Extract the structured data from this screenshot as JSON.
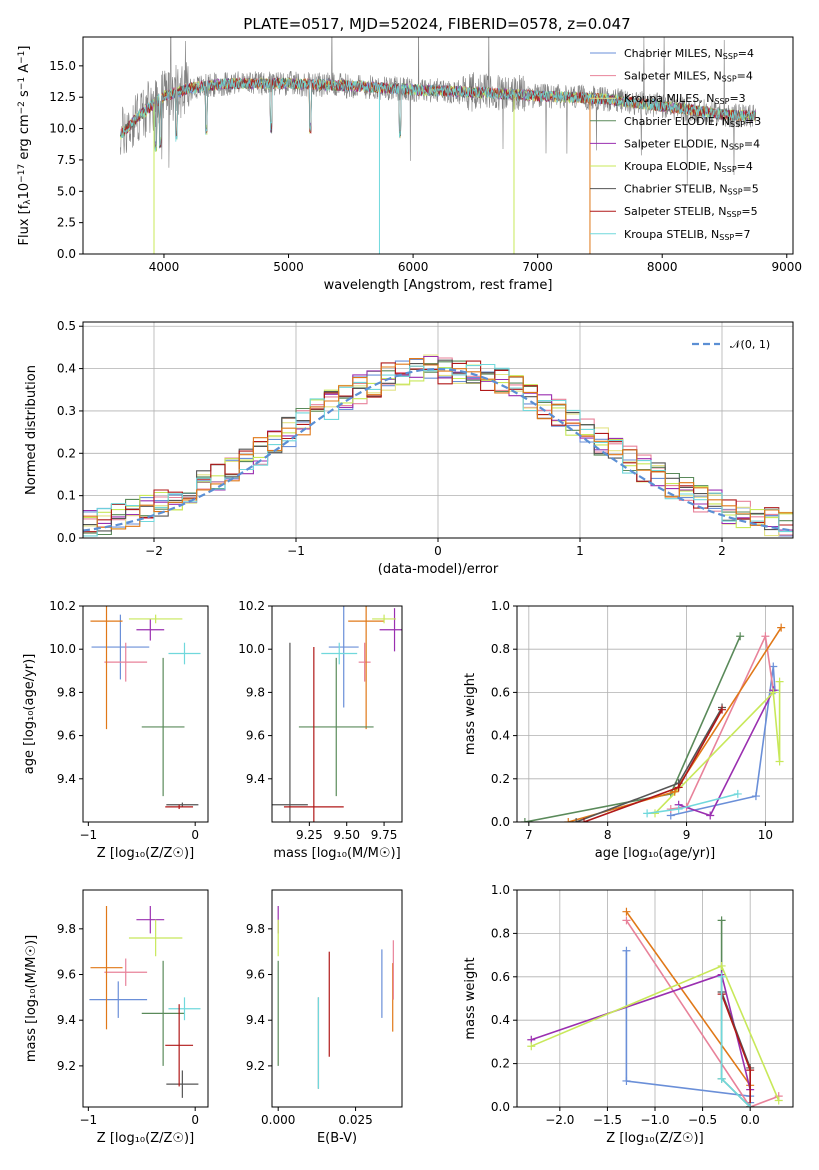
{
  "figure_title": "PLATE=0517, MJD=52024, FIBERID=0578, z=0.047",
  "colors": [
    "#6a8fd8",
    "#e8829a",
    "#e3e388",
    "#5a8a5a",
    "#9a2fb0",
    "#c8e85a",
    "#555555",
    "#b01818",
    "#70d8dc",
    "#e07818"
  ],
  "chart_data": [
    {
      "id": "spectrum",
      "type": "line",
      "title": "PLATE=0517, MJD=52024, FIBERID=0578, z=0.047",
      "xlabel": "wavelength [Angstrom, rest frame]",
      "ylabel_parts": [
        "Flux [f",
        "λ",
        "10",
        "−17",
        " erg cm",
        "−2",
        " s",
        "−1",
        " A",
        "−1",
        "]"
      ],
      "xlim": [
        3350,
        9050
      ],
      "ylim": [
        0,
        17.3
      ],
      "xticks": [
        "4000",
        "5000",
        "6000",
        "7000",
        "8000",
        "9000"
      ],
      "xtick_values": [
        4000,
        5000,
        6000,
        7000,
        8000,
        9000
      ],
      "yticks": [
        "0.0",
        "2.5",
        "5.0",
        "7.5",
        "10.0",
        "12.5",
        "15.0"
      ],
      "ytick_values": [
        0,
        2.5,
        5,
        7.5,
        10,
        12.5,
        15
      ],
      "legend_position": "upper-right",
      "series": [
        {
          "name": "Chabrier MILES",
          "nssp": "4",
          "color": "#6a8fd8"
        },
        {
          "name": "Salpeter MILES",
          "nssp": "4",
          "color": "#e8829a"
        },
        {
          "name": "Kroupa MILES",
          "nssp": "3",
          "color": "#e3e388"
        },
        {
          "name": "Chabrier ELODIE",
          "nssp": "3",
          "color": "#5a8a5a"
        },
        {
          "name": "Salpeter ELODIE",
          "nssp": "4",
          "color": "#9a2fb0"
        },
        {
          "name": "Kroupa ELODIE",
          "nssp": "4",
          "color": "#c8e85a"
        },
        {
          "name": "Chabrier STELIB",
          "nssp": "5",
          "color": "#555555"
        },
        {
          "name": "Salpeter STELIB",
          "nssp": "5",
          "color": "#b01818"
        },
        {
          "name": "Kroupa STELIB",
          "nssp": "7",
          "color": "#70d8dc"
        }
      ],
      "nssp_label": "N",
      "nssp_sub": "SSP",
      "continuum_x": [
        3650,
        3800,
        4000,
        4200,
        4500,
        5000,
        5500,
        6000,
        6500,
        7000,
        7500,
        8000,
        8500,
        8750
      ],
      "continuum_y": [
        9.5,
        11.0,
        12.6,
        13.2,
        13.6,
        13.6,
        13.4,
        13.1,
        12.9,
        12.6,
        12.4,
        11.8,
        11.1,
        11.0
      ]
    },
    {
      "id": "residuals",
      "type": "step",
      "xlabel": "(data-model)/error",
      "ylabel": "Normed distribution",
      "xlim": [
        -2.5,
        2.5
      ],
      "ylim": [
        0,
        0.51
      ],
      "xticks": [
        "−2",
        "−1",
        "0",
        "1",
        "2"
      ],
      "xtick_values": [
        -2,
        -1,
        0,
        1,
        2
      ],
      "yticks": [
        "0.0",
        "0.1",
        "0.2",
        "0.3",
        "0.4",
        "0.5"
      ],
      "ytick_values": [
        0,
        0.1,
        0.2,
        0.3,
        0.4,
        0.5
      ],
      "bin_width": 0.1,
      "legend": {
        "label": "𝒩(0, 1)",
        "position": "upper-right",
        "color": "#5b8fd4"
      },
      "grid": true
    },
    {
      "id": "age_vs_Z",
      "type": "errorbar",
      "xlabel": "Z [log₁₀(Z/Z☉)]",
      "ylabel": "age  [log₁₀(age/yr)]",
      "xlim": [
        -1.05,
        0.12
      ],
      "ylim": [
        9.2,
        10.2
      ],
      "xticks": [
        "−1",
        "0"
      ],
      "xtick_values": [
        -1,
        0
      ],
      "yticks": [
        "9.4",
        "9.6",
        "9.8",
        "10.0",
        "10.2"
      ],
      "ytick_values": [
        9.4,
        9.6,
        9.8,
        10.0,
        10.2
      ],
      "points": [
        {
          "color": "#6a8fd8",
          "x": -0.7,
          "xerr": 0.27,
          "y": 10.01,
          "yerr": 0.15
        },
        {
          "color": "#e8829a",
          "x": -0.65,
          "xerr": 0.2,
          "y": 9.94,
          "yerr": 0.09
        },
        {
          "color": "#e07818",
          "x": -0.83,
          "xerr": 0.15,
          "y": 10.13,
          "yerr": 0.5
        },
        {
          "color": "#9a2fb0",
          "x": -0.42,
          "xerr": 0.13,
          "y": 10.09,
          "yerr": 0.05
        },
        {
          "color": "#c8e85a",
          "x": -0.37,
          "xerr": 0.25,
          "y": 10.14,
          "yerr": 0.02
        },
        {
          "color": "#5a8a5a",
          "x": -0.3,
          "xerr": 0.2,
          "y": 9.64,
          "yerr": 0.32
        },
        {
          "color": "#70d8dc",
          "x": -0.1,
          "xerr": 0.15,
          "y": 9.98,
          "yerr": 0.05
        },
        {
          "color": "#555555",
          "x": -0.12,
          "xerr": 0.15,
          "y": 9.28,
          "yerr": 0.01
        },
        {
          "color": "#b01818",
          "x": -0.15,
          "xerr": 0.13,
          "y": 9.27,
          "yerr": 0.01
        }
      ]
    },
    {
      "id": "age_vs_mass",
      "type": "errorbar",
      "xlabel": "mass [log₁₀(M/M☉)]",
      "ylabel": "",
      "xlim": [
        9.0,
        9.87
      ],
      "ylim": [
        9.2,
        10.2
      ],
      "xticks": [
        "9.25",
        "9.50",
        "9.75"
      ],
      "xtick_values": [
        9.25,
        9.5,
        9.75
      ],
      "yticks": [
        "9.4",
        "9.6",
        "9.8",
        "10.0",
        "10.2"
      ],
      "ytick_values": [
        9.4,
        9.6,
        9.8,
        10.0,
        10.2
      ],
      "points": [
        {
          "color": "#6a8fd8",
          "x": 9.48,
          "xerr": 0.1,
          "y": 10.01,
          "yerr": 0.28
        },
        {
          "color": "#e8829a",
          "x": 9.62,
          "xerr": 0.04,
          "y": 9.94,
          "yerr": 0.09
        },
        {
          "color": "#e07818",
          "x": 9.63,
          "xerr": 0.12,
          "y": 10.13,
          "yerr": 0.5
        },
        {
          "color": "#9a2fb0",
          "x": 9.82,
          "xerr": 0.1,
          "y": 10.09,
          "yerr": 0.1
        },
        {
          "color": "#c8e85a",
          "x": 9.75,
          "xerr": 0.08,
          "y": 10.14,
          "yerr": 0.02
        },
        {
          "color": "#5a8a5a",
          "x": 9.43,
          "xerr": 0.25,
          "y": 9.64,
          "yerr": 0.32
        },
        {
          "color": "#70d8dc",
          "x": 9.45,
          "xerr": 0.12,
          "y": 9.98,
          "yerr": 0.05
        },
        {
          "color": "#555555",
          "x": 9.12,
          "xerr": 0.12,
          "y": 9.28,
          "yerr": 0.75
        },
        {
          "color": "#b01818",
          "x": 9.28,
          "xerr": 0.2,
          "y": 9.27,
          "yerr": 0.74
        }
      ]
    },
    {
      "id": "mass_weight_vs_age",
      "type": "line",
      "xlabel": "age  [log₁₀(age/yr)]",
      "ylabel": "mass weight",
      "xlim": [
        6.85,
        10.35
      ],
      "ylim": [
        0,
        1
      ],
      "xticks": [
        "7",
        "8",
        "9",
        "10"
      ],
      "xtick_values": [
        7,
        8,
        9,
        10
      ],
      "yticks": [
        "0.0",
        "0.2",
        "0.4",
        "0.6",
        "0.8",
        "1.0"
      ],
      "ytick_values": [
        0,
        0.2,
        0.4,
        0.6,
        0.8,
        1.0
      ],
      "grid": true,
      "series": [
        {
          "color": "#6a8fd8",
          "x": [
            8.8,
            9.88,
            10.1,
            10.12
          ],
          "y": [
            0.03,
            0.12,
            0.72,
            0.61
          ]
        },
        {
          "color": "#e8829a",
          "x": [
            8.8,
            9.0,
            10.0,
            10.1
          ],
          "y": [
            0.06,
            0.07,
            0.86,
            0.61
          ]
        },
        {
          "color": "#5a8a5a",
          "x": [
            6.95,
            8.8,
            9.68
          ],
          "y": [
            0.0,
            0.13,
            0.86
          ]
        },
        {
          "color": "#9a2fb0",
          "x": [
            8.9,
            9.3,
            10.1
          ],
          "y": [
            0.08,
            0.03,
            0.61
          ]
        },
        {
          "color": "#c8e85a",
          "x": [
            8.6,
            10.1,
            10.18,
            10.18
          ],
          "y": [
            0.04,
            0.6,
            0.28,
            0.65
          ]
        },
        {
          "color": "#e07818",
          "x": [
            7.5,
            8.85,
            10.2
          ],
          "y": [
            0.0,
            0.14,
            0.9
          ]
        },
        {
          "color": "#555555",
          "x": [
            7.6,
            8.9,
            9.45
          ],
          "y": [
            0.0,
            0.18,
            0.53
          ]
        },
        {
          "color": "#b01818",
          "x": [
            7.7,
            8.9,
            9.45
          ],
          "y": [
            0.0,
            0.16,
            0.52
          ]
        },
        {
          "color": "#70d8dc",
          "x": [
            8.5,
            8.9,
            9.65
          ],
          "y": [
            0.04,
            0.06,
            0.13
          ]
        }
      ]
    },
    {
      "id": "mass_vs_Z",
      "type": "errorbar",
      "xlabel": "Z [log₁₀(Z/Z☉)]",
      "ylabel": "mass [log₁₀(M/M☉)]",
      "xlim": [
        -1.05,
        0.12
      ],
      "ylim": [
        9.02,
        9.97
      ],
      "xticks": [
        "−1",
        "0"
      ],
      "xtick_values": [
        -1,
        0
      ],
      "yticks": [
        "9.2",
        "9.4",
        "9.6",
        "9.8"
      ],
      "ytick_values": [
        9.2,
        9.4,
        9.6,
        9.8
      ],
      "points": [
        {
          "color": "#6a8fd8",
          "x": -0.72,
          "xerr": 0.27,
          "y": 9.49,
          "yerr": 0.08
        },
        {
          "color": "#e8829a",
          "x": -0.65,
          "xerr": 0.2,
          "y": 9.61,
          "yerr": 0.06
        },
        {
          "color": "#e07818",
          "x": -0.83,
          "xerr": 0.15,
          "y": 9.63,
          "yerr": 0.27
        },
        {
          "color": "#9a2fb0",
          "x": -0.42,
          "xerr": 0.13,
          "y": 9.84,
          "yerr": 0.06
        },
        {
          "color": "#c8e85a",
          "x": -0.37,
          "xerr": 0.25,
          "y": 9.76,
          "yerr": 0.08
        },
        {
          "color": "#5a8a5a",
          "x": -0.3,
          "xerr": 0.2,
          "y": 9.43,
          "yerr": 0.23
        },
        {
          "color": "#70d8dc",
          "x": -0.1,
          "xerr": 0.15,
          "y": 9.45,
          "yerr": 0.05
        },
        {
          "color": "#555555",
          "x": -0.12,
          "xerr": 0.15,
          "y": 9.12,
          "yerr": 0.06
        },
        {
          "color": "#b01818",
          "x": -0.15,
          "xerr": 0.13,
          "y": 9.29,
          "yerr": 0.18
        }
      ]
    },
    {
      "id": "mass_vs_ebv",
      "type": "errorbar",
      "xlabel": "E(B-V)",
      "ylabel": "",
      "xlim": [
        -0.002,
        0.04
      ],
      "ylim": [
        9.02,
        9.97
      ],
      "xticks": [
        "0.000",
        "0.025"
      ],
      "xtick_values": [
        0,
        0.025
      ],
      "yticks": [
        "9.2",
        "9.4",
        "9.6",
        "9.8"
      ],
      "ytick_values": [
        9.2,
        9.4,
        9.6,
        9.8
      ],
      "points": [
        {
          "color": "#9a2fb0",
          "x": 0.0,
          "xerr": 0,
          "y": 9.84,
          "yerr": 0.06
        },
        {
          "color": "#c8e85a",
          "x": 0.0,
          "xerr": 0,
          "y": 9.76,
          "yerr": 0.08
        },
        {
          "color": "#5a8a5a",
          "x": 0.0,
          "xerr": 0,
          "y": 9.43,
          "yerr": 0.23
        },
        {
          "color": "#555555",
          "x": 0.013,
          "xerr": 0,
          "y": 9.3,
          "yerr": 0.2
        },
        {
          "color": "#70d8dc",
          "x": 0.013,
          "xerr": 0,
          "y": 9.3,
          "yerr": 0.2
        },
        {
          "color": "#b01818",
          "x": 0.0165,
          "xerr": 0,
          "y": 9.47,
          "yerr": 0.23
        },
        {
          "color": "#6a8fd8",
          "x": 0.0335,
          "xerr": 0,
          "y": 9.56,
          "yerr": 0.15
        },
        {
          "color": "#e07818",
          "x": 0.037,
          "xerr": 0,
          "y": 9.5,
          "yerr": 0.15
        },
        {
          "color": "#e8829a",
          "x": 0.0372,
          "xerr": 0,
          "y": 9.62,
          "yerr": 0.13
        }
      ]
    },
    {
      "id": "mass_weight_vs_Z",
      "type": "line",
      "xlabel": "Z [log₁₀(Z/Z☉)]",
      "ylabel": "mass weight",
      "xlim": [
        -2.45,
        0.45
      ],
      "ylim": [
        0,
        1
      ],
      "xticks": [
        "−2.0",
        "−1.5",
        "−1.0",
        "−0.5",
        "0.0"
      ],
      "xtick_values": [
        -2,
        -1.5,
        -1,
        -0.5,
        0
      ],
      "yticks": [
        "0.0",
        "0.2",
        "0.4",
        "0.6",
        "0.8",
        "1.0"
      ],
      "ytick_values": [
        0,
        0.2,
        0.4,
        0.6,
        0.8,
        1.0
      ],
      "grid": true,
      "series": [
        {
          "color": "#6a8fd8",
          "x": [
            -1.3,
            -1.3,
            0.0,
            0.0
          ],
          "y": [
            0.72,
            0.12,
            0.05,
            0.02
          ]
        },
        {
          "color": "#e8829a",
          "x": [
            -1.3,
            0.0,
            0.3
          ],
          "y": [
            0.86,
            0.0,
            0.05
          ]
        },
        {
          "color": "#e07818",
          "x": [
            -1.3,
            0.0
          ],
          "y": [
            0.9,
            0.1
          ]
        },
        {
          "color": "#5a8a5a",
          "x": [
            -0.3,
            -0.3,
            0.0
          ],
          "y": [
            0.86,
            0.13,
            0.0
          ]
        },
        {
          "color": "#9a2fb0",
          "x": [
            -2.3,
            -0.3,
            0.0
          ],
          "y": [
            0.31,
            0.61,
            0.08
          ]
        },
        {
          "color": "#c8e85a",
          "x": [
            -2.3,
            -0.3,
            0.3
          ],
          "y": [
            0.28,
            0.65,
            0.03
          ]
        },
        {
          "color": "#555555",
          "x": [
            -0.3,
            0.0,
            0.0
          ],
          "y": [
            0.53,
            0.18,
            0.0
          ]
        },
        {
          "color": "#b01818",
          "x": [
            -0.3,
            0.0,
            0.0
          ],
          "y": [
            0.52,
            0.17,
            0.0
          ]
        },
        {
          "color": "#70d8dc",
          "x": [
            -0.3,
            -0.3,
            0.0
          ],
          "y": [
            0.6,
            0.13,
            0.0
          ]
        }
      ]
    }
  ]
}
